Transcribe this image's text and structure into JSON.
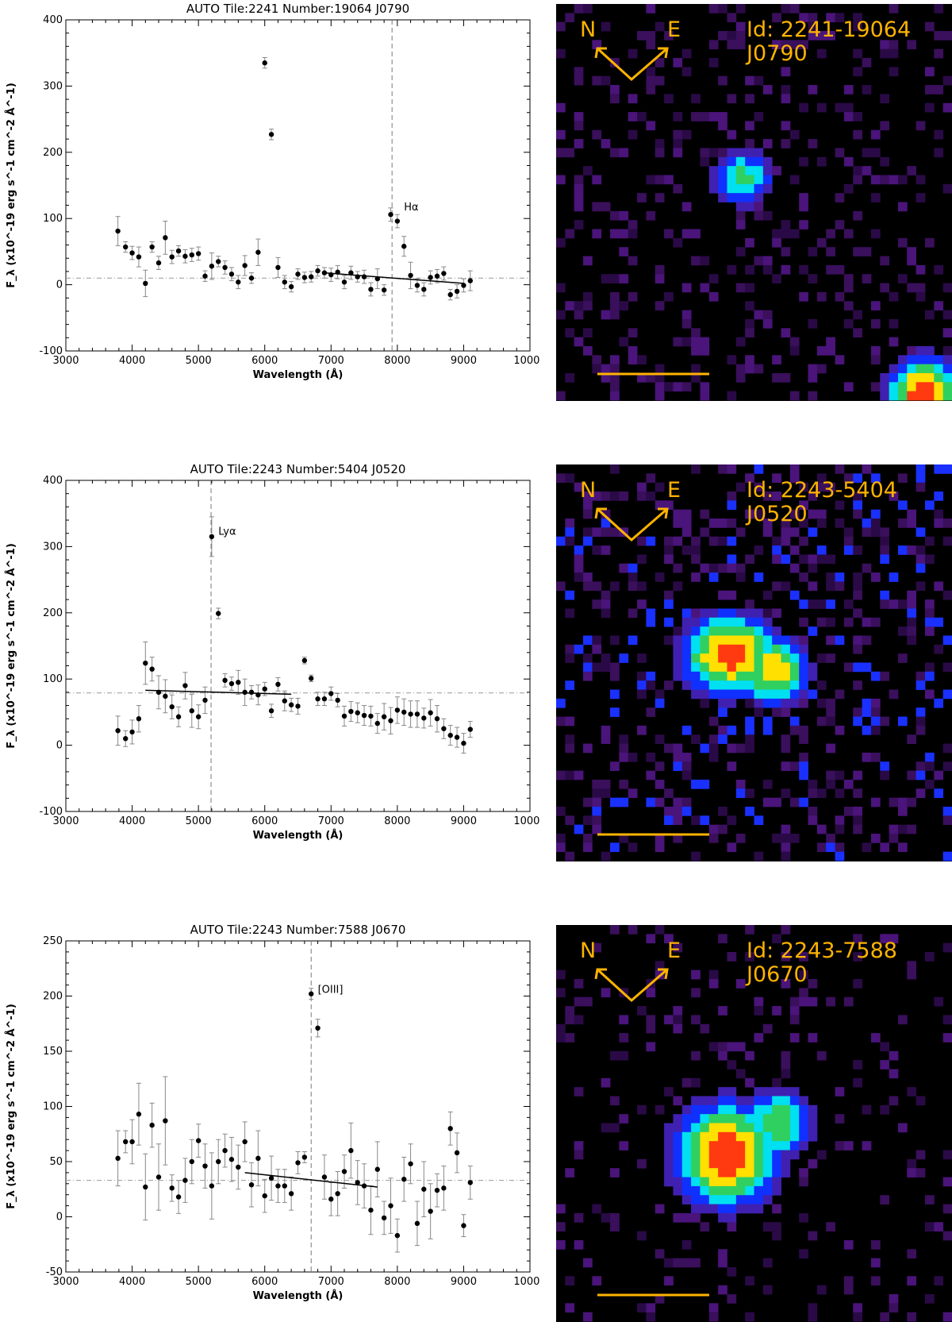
{
  "charts": [
    {
      "title": "AUTO Tile:2241 Number:19064 J0790",
      "image_id": "Id: 2241-19064",
      "filter": "J0790",
      "compass": {
        "n": "N",
        "e": "E"
      },
      "blob_colors": [
        "#3a1060",
        "#2020ff",
        "#00d8ff",
        "#20c870",
        "#ffe000",
        "#ff4000"
      ]
    },
    {
      "title": "AUTO Tile:2243 Number:5404 J0520",
      "image_id": "Id: 2243-5404",
      "filter": "J0520",
      "compass": {
        "n": "N",
        "e": "E"
      }
    },
    {
      "title": "AUTO Tile:2243 Number:7588 J0670",
      "image_id": "Id: 2243-7588",
      "filter": "J0670",
      "compass": {
        "n": "N",
        "e": "E"
      }
    }
  ],
  "chart_data": [
    {
      "type": "scatter",
      "title": "AUTO Tile:2241 Number:19064 J0790",
      "xlabel": "Wavelength (Å)",
      "ylabel": "F_λ (x10^-19 erg s^-1 cm^-2 Å^-1)",
      "xlim": [
        3000,
        10000
      ],
      "ylim": [
        -100,
        400
      ],
      "xticks": [
        3000,
        4000,
        5000,
        6000,
        7000,
        8000,
        9000,
        10000
      ],
      "yticks": [
        -100,
        0,
        100,
        200,
        300,
        400
      ],
      "points": [
        [
          3785,
          81,
          22
        ],
        [
          3900,
          57,
          8
        ],
        [
          4000,
          48,
          10
        ],
        [
          4100,
          42,
          15
        ],
        [
          4200,
          2,
          20
        ],
        [
          4300,
          57,
          8
        ],
        [
          4400,
          33,
          10
        ],
        [
          4500,
          71,
          25
        ],
        [
          4600,
          42,
          10
        ],
        [
          4700,
          51,
          8
        ],
        [
          4800,
          43,
          10
        ],
        [
          4900,
          45,
          10
        ],
        [
          5000,
          47,
          10
        ],
        [
          5100,
          13,
          8
        ],
        [
          5200,
          28,
          20
        ],
        [
          5300,
          35,
          8
        ],
        [
          5400,
          26,
          10
        ],
        [
          5500,
          16,
          10
        ],
        [
          5600,
          4,
          10
        ],
        [
          5700,
          29,
          15
        ],
        [
          5800,
          10,
          8
        ],
        [
          5900,
          49,
          20
        ],
        [
          6000,
          335,
          8
        ],
        [
          6100,
          227,
          8
        ],
        [
          6200,
          26,
          15
        ],
        [
          6300,
          4,
          10
        ],
        [
          6400,
          -3,
          8
        ],
        [
          6500,
          16,
          8
        ],
        [
          6600,
          11,
          8
        ],
        [
          6700,
          12,
          8
        ],
        [
          6800,
          21,
          8
        ],
        [
          6900,
          18,
          8
        ],
        [
          7000,
          15,
          10
        ],
        [
          7100,
          19,
          10
        ],
        [
          7200,
          4,
          10
        ],
        [
          7300,
          18,
          10
        ],
        [
          7400,
          12,
          8
        ],
        [
          7500,
          12,
          10
        ],
        [
          7600,
          -7,
          10
        ],
        [
          7700,
          9,
          15
        ],
        [
          7800,
          -8,
          8
        ],
        [
          7900,
          106,
          10
        ],
        [
          8000,
          96,
          10
        ],
        [
          8100,
          58,
          15
        ],
        [
          8200,
          14,
          20
        ],
        [
          8300,
          -1,
          10
        ],
        [
          8400,
          -7,
          10
        ],
        [
          8500,
          11,
          10
        ],
        [
          8600,
          13,
          10
        ],
        [
          8700,
          17,
          10
        ],
        [
          8800,
          -15,
          8
        ],
        [
          8900,
          -10,
          10
        ],
        [
          9000,
          -1,
          10
        ],
        [
          9100,
          6,
          15
        ]
      ],
      "hline": 10,
      "vline": 7920,
      "fit": [
        [
          6900,
          18
        ],
        [
          9000,
          2
        ]
      ],
      "annotation": {
        "text": "Hα",
        "x": 8100,
        "y": 112
      }
    },
    {
      "type": "scatter",
      "title": "AUTO Tile:2243 Number:5404 J0520",
      "xlabel": "Wavelength (Å)",
      "ylabel": "F_λ (x10^-19 erg s^-1 cm^-2 Å^-1)",
      "xlim": [
        3000,
        10000
      ],
      "ylim": [
        -100,
        400
      ],
      "xticks": [
        3000,
        4000,
        5000,
        6000,
        7000,
        8000,
        9000,
        10000
      ],
      "yticks": [
        -100,
        0,
        100,
        200,
        300,
        400
      ],
      "points": [
        [
          3785,
          22,
          22
        ],
        [
          3900,
          10,
          12
        ],
        [
          4000,
          20,
          18
        ],
        [
          4100,
          40,
          20
        ],
        [
          4200,
          124,
          32
        ],
        [
          4300,
          115,
          18
        ],
        [
          4400,
          80,
          25
        ],
        [
          4500,
          74,
          25
        ],
        [
          4600,
          58,
          18
        ],
        [
          4700,
          43,
          15
        ],
        [
          4800,
          90,
          20
        ],
        [
          4900,
          52,
          25
        ],
        [
          5000,
          43,
          18
        ],
        [
          5100,
          68,
          20
        ],
        [
          5200,
          315,
          30
        ],
        [
          5300,
          199,
          8
        ],
        [
          5400,
          98,
          10
        ],
        [
          5500,
          93,
          10
        ],
        [
          5600,
          95,
          18
        ],
        [
          5700,
          80,
          20
        ],
        [
          5800,
          80,
          10
        ],
        [
          5900,
          76,
          15
        ],
        [
          6000,
          85,
          10
        ],
        [
          6100,
          52,
          10
        ],
        [
          6200,
          92,
          10
        ],
        [
          6300,
          67,
          15
        ],
        [
          6400,
          61,
          10
        ],
        [
          6500,
          59,
          12
        ],
        [
          6600,
          128,
          5
        ],
        [
          6700,
          101,
          5
        ],
        [
          6800,
          70,
          10
        ],
        [
          6900,
          70,
          10
        ],
        [
          7000,
          78,
          10
        ],
        [
          7100,
          68,
          10
        ],
        [
          7200,
          44,
          15
        ],
        [
          7300,
          51,
          15
        ],
        [
          7400,
          49,
          15
        ],
        [
          7500,
          45,
          15
        ],
        [
          7600,
          44,
          15
        ],
        [
          7700,
          33,
          15
        ],
        [
          7800,
          43,
          20
        ],
        [
          7900,
          37,
          20
        ],
        [
          8000,
          53,
          20
        ],
        [
          8100,
          50,
          20
        ],
        [
          8200,
          47,
          20
        ],
        [
          8300,
          47,
          20
        ],
        [
          8400,
          41,
          15
        ],
        [
          8500,
          49,
          20
        ],
        [
          8600,
          40,
          20
        ],
        [
          8700,
          25,
          15
        ],
        [
          8800,
          15,
          15
        ],
        [
          8900,
          12,
          15
        ],
        [
          9000,
          3,
          15
        ],
        [
          9100,
          24,
          12
        ]
      ],
      "hline": 79,
      "vline": 5190,
      "fit": [
        [
          4200,
          83
        ],
        [
          6400,
          77
        ]
      ],
      "annotation": {
        "text": "Lyα",
        "x": 5300,
        "y": 318
      }
    },
    {
      "type": "scatter",
      "title": "AUTO Tile:2243 Number:7588 J0670",
      "xlabel": "Wavelength (Å)",
      "ylabel": "F_λ (x10^-19 erg s^-1 cm^-2 Å^-1)",
      "xlim": [
        3000,
        10000
      ],
      "ylim": [
        -50,
        250
      ],
      "xticks": [
        3000,
        4000,
        5000,
        6000,
        7000,
        8000,
        9000,
        10000
      ],
      "yticks": [
        -50,
        0,
        50,
        100,
        150,
        200,
        250
      ],
      "points": [
        [
          3785,
          53,
          25
        ],
        [
          3900,
          68,
          10
        ],
        [
          4000,
          68,
          20
        ],
        [
          4100,
          93,
          28
        ],
        [
          4200,
          27,
          30
        ],
        [
          4300,
          83,
          20
        ],
        [
          4400,
          36,
          30
        ],
        [
          4500,
          87,
          40
        ],
        [
          4600,
          26,
          12
        ],
        [
          4700,
          18,
          15
        ],
        [
          4800,
          33,
          20
        ],
        [
          4900,
          50,
          20
        ],
        [
          5000,
          69,
          15
        ],
        [
          5100,
          46,
          20
        ],
        [
          5200,
          28,
          30
        ],
        [
          5300,
          50,
          20
        ],
        [
          5400,
          60,
          15
        ],
        [
          5500,
          52,
          20
        ],
        [
          5600,
          45,
          20
        ],
        [
          5700,
          68,
          18
        ],
        [
          5800,
          29,
          20
        ],
        [
          5900,
          53,
          25
        ],
        [
          6000,
          19,
          15
        ],
        [
          6100,
          35,
          20
        ],
        [
          6200,
          28,
          15
        ],
        [
          6300,
          28,
          15
        ],
        [
          6400,
          21,
          15
        ],
        [
          6500,
          49,
          10
        ],
        [
          6600,
          54,
          5
        ],
        [
          6700,
          202,
          5
        ],
        [
          6800,
          171,
          8
        ],
        [
          6900,
          36,
          20
        ],
        [
          7000,
          16,
          15
        ],
        [
          7100,
          21,
          20
        ],
        [
          7200,
          41,
          15
        ],
        [
          7300,
          60,
          25
        ],
        [
          7400,
          31,
          20
        ],
        [
          7500,
          28,
          20
        ],
        [
          7600,
          6,
          22
        ],
        [
          7700,
          43,
          25
        ],
        [
          7800,
          -1,
          15
        ],
        [
          7900,
          10,
          25
        ],
        [
          8000,
          -17,
          15
        ],
        [
          8100,
          34,
          20
        ],
        [
          8200,
          48,
          18
        ],
        [
          8300,
          -6,
          20
        ],
        [
          8400,
          25,
          25
        ],
        [
          8500,
          5,
          25
        ],
        [
          8600,
          24,
          15
        ],
        [
          8700,
          26,
          20
        ],
        [
          8800,
          80,
          15
        ],
        [
          8900,
          58,
          18
        ],
        [
          9000,
          -8,
          10
        ],
        [
          9100,
          31,
          15
        ]
      ],
      "hline": 33,
      "vline": 6700,
      "fit": [
        [
          5700,
          40
        ],
        [
          7700,
          27
        ]
      ],
      "annotation": {
        "text": "[OIII]",
        "x": 6800,
        "y": 203
      }
    }
  ]
}
